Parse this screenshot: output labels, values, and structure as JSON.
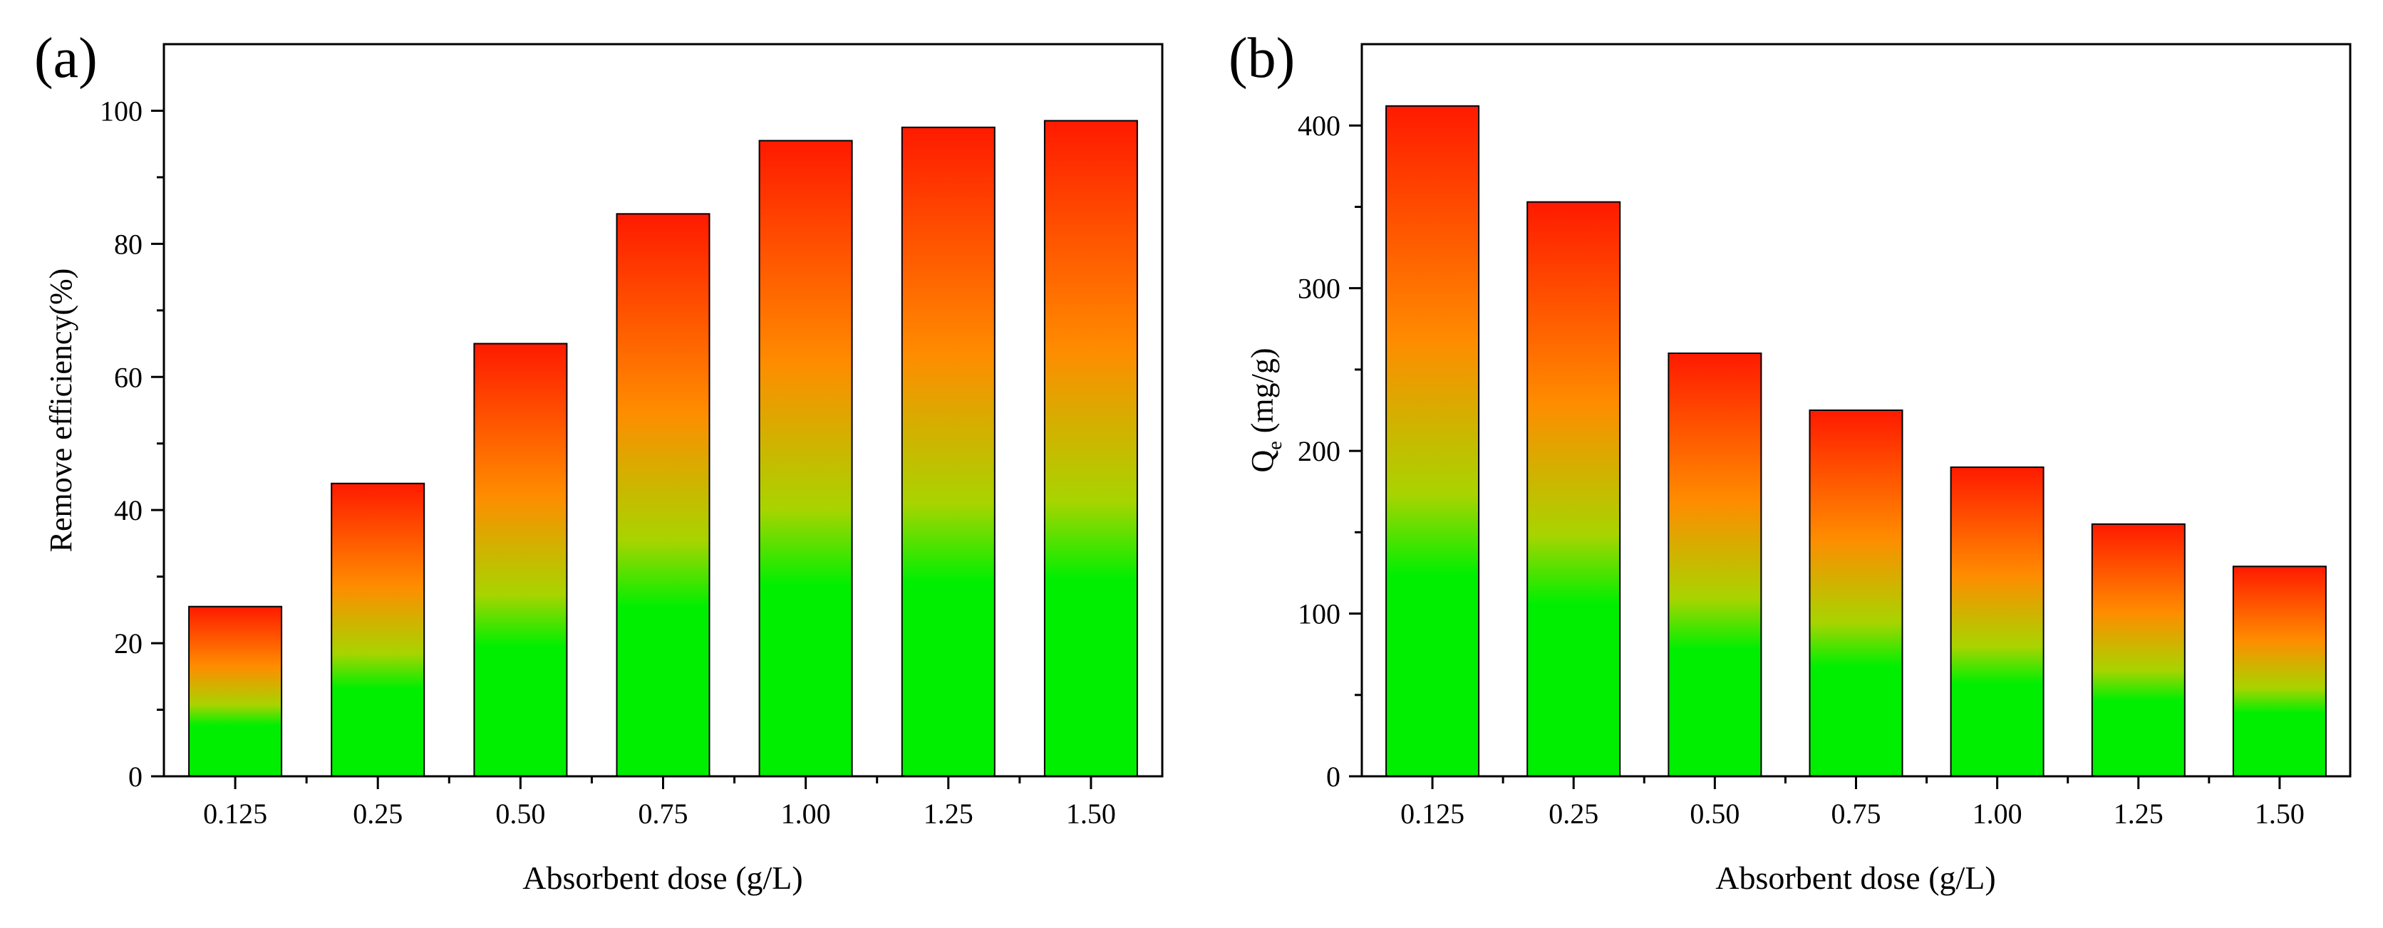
{
  "colors": {
    "bar_top": "#ff1a00",
    "bar_upper": "#ff8c00",
    "bar_mid": "#a8d400",
    "bar_bottom": "#00ef00",
    "axis": "#000000"
  },
  "chart_data": [
    {
      "type": "bar",
      "panel_label": "(a)",
      "title": "",
      "xlabel": "Absorbent dose (g/L)",
      "ylabel": "Remove efficiency(%)",
      "ylabel_sub": "",
      "ylabel_tail": "",
      "categories": [
        "0.125",
        "0.25",
        "0.50",
        "0.75",
        "1.00",
        "1.25",
        "1.50"
      ],
      "values": [
        25.5,
        44,
        65,
        84.5,
        95.5,
        97.5,
        98.5
      ],
      "ylim": [
        0,
        110
      ],
      "yticks": [
        0,
        20,
        40,
        60,
        80,
        100
      ],
      "yminor": [
        10,
        30,
        50,
        70,
        90
      ],
      "grid": false,
      "legend": "none"
    },
    {
      "type": "bar",
      "panel_label": "(b)",
      "title": "",
      "xlabel": "Absorbent dose (g/L)",
      "ylabel": "Q",
      "ylabel_sub": "e",
      "ylabel_tail": " (mg/g)",
      "categories": [
        "0.125",
        "0.25",
        "0.50",
        "0.75",
        "1.00",
        "1.25",
        "1.50"
      ],
      "values": [
        412,
        353,
        260,
        225,
        190,
        155,
        129
      ],
      "ylim": [
        0,
        450
      ],
      "yticks": [
        0,
        100,
        200,
        300,
        400
      ],
      "yminor": [
        50,
        150,
        250,
        350
      ],
      "grid": false,
      "legend": "none"
    }
  ]
}
